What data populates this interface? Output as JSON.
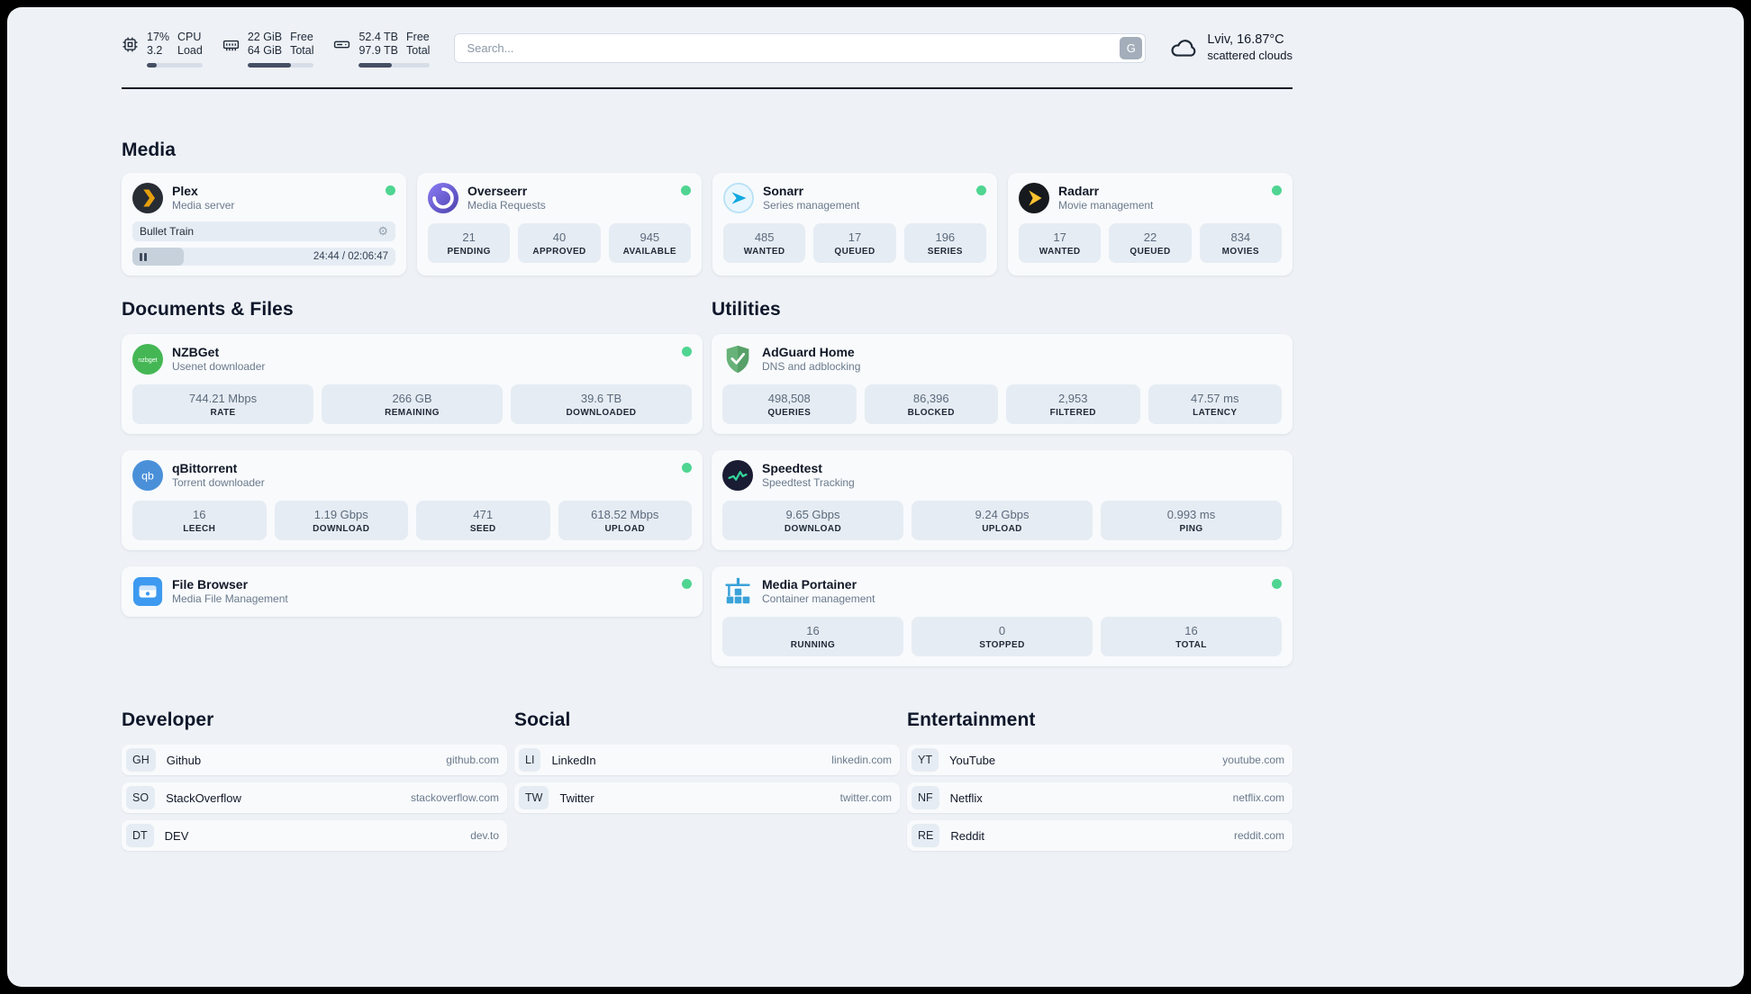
{
  "topbar": {
    "cpu": {
      "value1": "17%",
      "value2": "3.2",
      "label1": "CPU",
      "label2": "Load",
      "progress": 17
    },
    "memory": {
      "value1": "22 GiB",
      "value2": "64 GiB",
      "label1": "Free",
      "label2": "Total",
      "progress": 66
    },
    "disk": {
      "value1": "52.4 TB",
      "value2": "97.9 TB",
      "label1": "Free",
      "label2": "Total",
      "progress": 46
    },
    "search": {
      "placeholder": "Search...",
      "button_label": "G"
    },
    "weather": {
      "location": "Lviv, 16.87°C",
      "condition": "scattered clouds"
    }
  },
  "icons": {
    "gear": "⚙"
  },
  "colors": {
    "status_green": "#4fd591",
    "progress_fill": "#454f63"
  },
  "sections": {
    "media": {
      "title": "Media",
      "plex": {
        "name": "Plex",
        "subtitle": "Media server",
        "now_playing": "Bullet Train",
        "time": "24:44 / 02:06:47",
        "progress": 19.5
      },
      "overseerr": {
        "name": "Overseerr",
        "subtitle": "Media Requests",
        "stats": [
          {
            "value": "21",
            "label": "PENDING"
          },
          {
            "value": "40",
            "label": "APPROVED"
          },
          {
            "value": "945",
            "label": "AVAILABLE"
          }
        ]
      },
      "sonarr": {
        "name": "Sonarr",
        "subtitle": "Series management",
        "stats": [
          {
            "value": "485",
            "label": "WANTED"
          },
          {
            "value": "17",
            "label": "QUEUED"
          },
          {
            "value": "196",
            "label": "SERIES"
          }
        ]
      },
      "radarr": {
        "name": "Radarr",
        "subtitle": "Movie management",
        "stats": [
          {
            "value": "17",
            "label": "WANTED"
          },
          {
            "value": "22",
            "label": "QUEUED"
          },
          {
            "value": "834",
            "label": "MOVIES"
          }
        ]
      }
    },
    "documents": {
      "title": "Documents & Files",
      "nzbget": {
        "name": "NZBGet",
        "subtitle": "Usenet downloader",
        "stats": [
          {
            "value": "744.21 Mbps",
            "label": "RATE"
          },
          {
            "value": "266 GB",
            "label": "REMAINING"
          },
          {
            "value": "39.6 TB",
            "label": "DOWNLOADED"
          }
        ]
      },
      "qbittorrent": {
        "name": "qBittorrent",
        "subtitle": "Torrent downloader",
        "stats": [
          {
            "value": "16",
            "label": "LEECH"
          },
          {
            "value": "1.19 Gbps",
            "label": "DOWNLOAD"
          },
          {
            "value": "471",
            "label": "SEED"
          },
          {
            "value": "618.52 Mbps",
            "label": "UPLOAD"
          }
        ]
      },
      "filebrowser": {
        "name": "File Browser",
        "subtitle": "Media File Management"
      }
    },
    "utilities": {
      "title": "Utilities",
      "adguard": {
        "name": "AdGuard Home",
        "subtitle": "DNS and adblocking",
        "stats": [
          {
            "value": "498,508",
            "label": "QUERIES"
          },
          {
            "value": "86,396",
            "label": "BLOCKED"
          },
          {
            "value": "2,953",
            "label": "FILTERED"
          },
          {
            "value": "47.57 ms",
            "label": "LATENCY"
          }
        ]
      },
      "speedtest": {
        "name": "Speedtest",
        "subtitle": "Speedtest Tracking",
        "stats": [
          {
            "value": "9.65 Gbps",
            "label": "DOWNLOAD"
          },
          {
            "value": "9.24 Gbps",
            "label": "UPLOAD"
          },
          {
            "value": "0.993 ms",
            "label": "PING"
          }
        ]
      },
      "portainer": {
        "name": "Media Portainer",
        "subtitle": "Container management",
        "stats": [
          {
            "value": "16",
            "label": "RUNNING"
          },
          {
            "value": "0",
            "label": "STOPPED"
          },
          {
            "value": "16",
            "label": "TOTAL"
          }
        ]
      }
    },
    "bookmarks": [
      {
        "title": "Developer",
        "items": [
          {
            "abbr": "GH",
            "name": "Github",
            "url": "github.com"
          },
          {
            "abbr": "SO",
            "name": "StackOverflow",
            "url": "stackoverflow.com"
          },
          {
            "abbr": "DT",
            "name": "DEV",
            "url": "dev.to"
          }
        ]
      },
      {
        "title": "Social",
        "items": [
          {
            "abbr": "LI",
            "name": "LinkedIn",
            "url": "linkedin.com"
          },
          {
            "abbr": "TW",
            "name": "Twitter",
            "url": "twitter.com"
          }
        ]
      },
      {
        "title": "Entertainment",
        "items": [
          {
            "abbr": "YT",
            "name": "YouTube",
            "url": "youtube.com"
          },
          {
            "abbr": "NF",
            "name": "Netflix",
            "url": "netflix.com"
          },
          {
            "abbr": "RE",
            "name": "Reddit",
            "url": "reddit.com"
          }
        ]
      }
    ]
  }
}
